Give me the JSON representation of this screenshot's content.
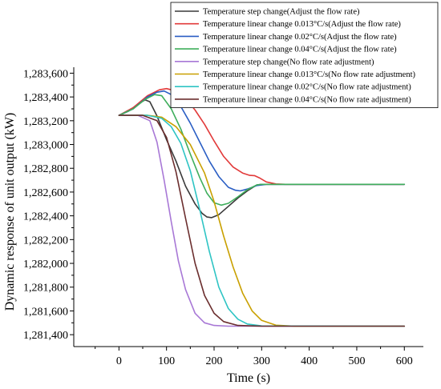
{
  "chart_data": {
    "type": "line",
    "title": "",
    "xlabel": "Time (s)",
    "ylabel": "Dynamic response of unit output (kW)",
    "xlim": [
      -95,
      640
    ],
    "ylim": [
      1281300,
      1283650
    ],
    "x_ticks": [
      0,
      100,
      200,
      300,
      400,
      500,
      600
    ],
    "x_tick_labels": [
      "0",
      "100",
      "200",
      "300",
      "400",
      "500",
      "600"
    ],
    "y_ticks": [
      1281400,
      1281600,
      1281800,
      1282000,
      1282200,
      1282400,
      1282600,
      1282800,
      1283000,
      1283200,
      1283400,
      1283600
    ],
    "y_tick_labels": [
      "1,281,400",
      "1,281,600",
      "1,281,800",
      "1,282,000",
      "1,282,200",
      "1,282,400",
      "1,282,600",
      "1,282,800",
      "1,283,000",
      "1,283,200",
      "1,283,400",
      "1,283,600"
    ],
    "grid": false,
    "legend_position": "top-right",
    "series": [
      {
        "name": "Temperature step change(Adjust the flow rate)",
        "color": "#3a3a3a",
        "points": [
          [
            0,
            1283245
          ],
          [
            20,
            1283280
          ],
          [
            40,
            1283340
          ],
          [
            55,
            1283375
          ],
          [
            65,
            1283360
          ],
          [
            80,
            1283240
          ],
          [
            100,
            1283040
          ],
          [
            120,
            1282860
          ],
          [
            140,
            1282650
          ],
          [
            160,
            1282500
          ],
          [
            175,
            1282420
          ],
          [
            185,
            1282390
          ],
          [
            195,
            1282385
          ],
          [
            210,
            1282410
          ],
          [
            230,
            1282480
          ],
          [
            250,
            1282550
          ],
          [
            270,
            1282610
          ],
          [
            290,
            1282660
          ],
          [
            300,
            1282665
          ],
          [
            600,
            1282665
          ]
        ]
      },
      {
        "name": "Temperature linear change 0.013°C/s(Adjust the flow rate)",
        "color": "#e23a3a",
        "points": [
          [
            0,
            1283245
          ],
          [
            30,
            1283310
          ],
          [
            60,
            1283410
          ],
          [
            85,
            1283460
          ],
          [
            100,
            1283470
          ],
          [
            120,
            1283450
          ],
          [
            140,
            1283390
          ],
          [
            160,
            1283290
          ],
          [
            180,
            1283170
          ],
          [
            200,
            1283030
          ],
          [
            220,
            1282900
          ],
          [
            240,
            1282810
          ],
          [
            260,
            1282760
          ],
          [
            275,
            1282740
          ],
          [
            285,
            1282738
          ],
          [
            295,
            1282720
          ],
          [
            310,
            1282685
          ],
          [
            330,
            1282668
          ],
          [
            350,
            1282665
          ],
          [
            600,
            1282665
          ]
        ]
      },
      {
        "name": "Temperature linear change 0.02°C/s(Adjust the flow rate)",
        "color": "#2a5ec4",
        "points": [
          [
            0,
            1283245
          ],
          [
            30,
            1283300
          ],
          [
            60,
            1283400
          ],
          [
            80,
            1283440
          ],
          [
            95,
            1283450
          ],
          [
            110,
            1283420
          ],
          [
            130,
            1283320
          ],
          [
            150,
            1283180
          ],
          [
            170,
            1283020
          ],
          [
            190,
            1282860
          ],
          [
            210,
            1282730
          ],
          [
            230,
            1282640
          ],
          [
            245,
            1282615
          ],
          [
            255,
            1282610
          ],
          [
            270,
            1282625
          ],
          [
            290,
            1282655
          ],
          [
            310,
            1282665
          ],
          [
            600,
            1282665
          ]
        ]
      },
      {
        "name": "Temperature linear change 0.04°C/s(Adjust the flow rate)",
        "color": "#3fae5c",
        "points": [
          [
            0,
            1283245
          ],
          [
            30,
            1283300
          ],
          [
            55,
            1283380
          ],
          [
            75,
            1283420
          ],
          [
            90,
            1283410
          ],
          [
            110,
            1283300
          ],
          [
            130,
            1283130
          ],
          [
            150,
            1282920
          ],
          [
            170,
            1282720
          ],
          [
            185,
            1282590
          ],
          [
            200,
            1282510
          ],
          [
            215,
            1282490
          ],
          [
            230,
            1282505
          ],
          [
            250,
            1282560
          ],
          [
            270,
            1282620
          ],
          [
            290,
            1282660
          ],
          [
            300,
            1282665
          ],
          [
            600,
            1282665
          ]
        ]
      },
      {
        "name": "Temperature step change(No flow rate adjustment)",
        "color": "#a878d6",
        "points": [
          [
            0,
            1283245
          ],
          [
            40,
            1283245
          ],
          [
            65,
            1283200
          ],
          [
            80,
            1283020
          ],
          [
            95,
            1282700
          ],
          [
            110,
            1282350
          ],
          [
            125,
            1282020
          ],
          [
            140,
            1281780
          ],
          [
            160,
            1281580
          ],
          [
            180,
            1281500
          ],
          [
            200,
            1281478
          ],
          [
            230,
            1281472
          ],
          [
            600,
            1281472
          ]
        ]
      },
      {
        "name": "Temperature linear change 0.013°C/s(No flow rate adjustment)",
        "color": "#c9a000",
        "points": [
          [
            0,
            1283245
          ],
          [
            60,
            1283245
          ],
          [
            90,
            1283230
          ],
          [
            120,
            1283150
          ],
          [
            150,
            1283000
          ],
          [
            180,
            1282760
          ],
          [
            200,
            1282520
          ],
          [
            220,
            1282230
          ],
          [
            240,
            1281970
          ],
          [
            260,
            1281750
          ],
          [
            280,
            1281600
          ],
          [
            300,
            1281520
          ],
          [
            330,
            1281480
          ],
          [
            370,
            1281472
          ],
          [
            600,
            1281472
          ]
        ]
      },
      {
        "name": "Temperature linear change 0.02°C/s(No flow rate adjustment)",
        "color": "#2ec4c4",
        "points": [
          [
            0,
            1283245
          ],
          [
            60,
            1283245
          ],
          [
            90,
            1283220
          ],
          [
            110,
            1283150
          ],
          [
            130,
            1283010
          ],
          [
            150,
            1282780
          ],
          [
            170,
            1282450
          ],
          [
            190,
            1282100
          ],
          [
            210,
            1281800
          ],
          [
            230,
            1281620
          ],
          [
            250,
            1281530
          ],
          [
            270,
            1281490
          ],
          [
            300,
            1281474
          ],
          [
            600,
            1281472
          ]
        ]
      },
      {
        "name": "Temperature linear change 0.04°C/s(No flow rate adjustment)",
        "color": "#6b2e2e",
        "points": [
          [
            0,
            1283245
          ],
          [
            50,
            1283245
          ],
          [
            80,
            1283200
          ],
          [
            100,
            1283060
          ],
          [
            120,
            1282770
          ],
          [
            140,
            1282380
          ],
          [
            160,
            1282000
          ],
          [
            180,
            1281730
          ],
          [
            200,
            1281580
          ],
          [
            220,
            1281510
          ],
          [
            250,
            1281478
          ],
          [
            300,
            1281472
          ],
          [
            600,
            1281472
          ]
        ]
      }
    ]
  }
}
